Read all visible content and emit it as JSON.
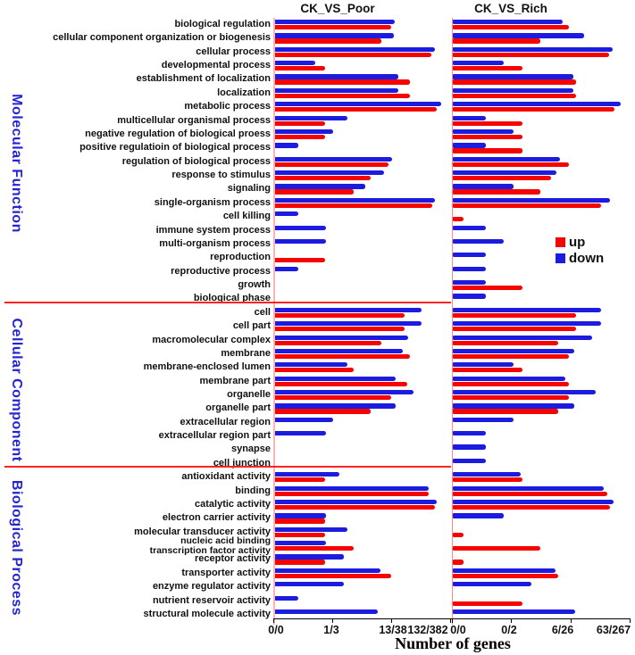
{
  "legend": {
    "up_label": "up",
    "down_label": "down"
  },
  "colors": {
    "up": "#f50400",
    "down": "#1c1ce0",
    "group_label": "#2424d2",
    "divider": "#ff2222",
    "zero_line_left": "#ffb3b3",
    "zero_line_right": "#ff8888"
  },
  "groups": [
    {
      "label": "Molecular Function",
      "start": 0,
      "end": 20
    },
    {
      "label": "Cellular Component",
      "start": 21,
      "end": 32
    },
    {
      "label": "Biological Process",
      "start": 33,
      "end": 43
    }
  ],
  "chart_data": {
    "type": "bar",
    "orientation": "horizontal",
    "x_scale": "log; ticks at 0.1%, 1%, 10%, 100% of total up/down genes, labelled as up/down gene counts",
    "xlabel": "Number of genes",
    "legend_position": "middle-right",
    "note": "values are gene counts estimated from bar lengths; 0.1 marks a barely-visible stub at the axis origin",
    "categories": [
      "biological regulation",
      "cellular component organization or biogenesis",
      "cellular process",
      "developmental process",
      "establishment of localization",
      "localization",
      "metabolic process",
      "multicellular organismal process",
      "negative regulation of biological proess",
      "positive regulatioin of biological process",
      "regulation of biological process",
      "response to stimulus",
      "signaling",
      "single-organism process",
      "cell killing",
      "immune system process",
      "multi-organism process",
      "reproduction",
      "reproductive process",
      "growth",
      "biological phase",
      "cell",
      "cell part",
      "macromolecular complex",
      "membrane",
      "membrane-enclosed lumen",
      "membrane part",
      "organelle",
      "organelle part",
      "extracellular region",
      "extracellular region part",
      "synapse",
      "cell junction",
      "antioxidant activity",
      "binding",
      "catalytic activity",
      "electron carrier activity",
      "molecular transducer activity",
      "nucleic acid binding\ntranscription factor activity",
      "receptor activity",
      "transporter activity",
      "enzyme regulator activity",
      "nutrient reservoir activity",
      "structural molecule activity"
    ],
    "panels": [
      {
        "title": "CK_VS_Poor",
        "totals": {
          "up": 132,
          "down": 382
        },
        "x_tick_labels": [
          "0/0",
          "1/3",
          "13/38",
          "132/382"
        ],
        "series": [
          {
            "name": "up",
            "values": [
              13,
              9,
              64,
              1,
              27,
              27,
              78,
              1,
              1,
              0,
              12,
              6,
              3,
              66,
              0,
              0,
              0,
              1,
              0,
              0.1,
              0,
              22,
              22,
              9,
              27,
              3,
              25,
              13,
              6,
              0,
              0,
              0.1,
              0.1,
              1,
              57,
              73,
              1,
              1,
              3,
              1,
              13,
              0,
              0,
              0
            ]
          },
          {
            "name": "down",
            "values": [
              44,
              42,
              211,
              2,
              50,
              50,
              270,
              7,
              4,
              1,
              40,
              29,
              14,
              211,
              1,
              3,
              3,
              0,
              1,
              0.1,
              0.1,
              125,
              123,
              74,
              60,
              7,
              45,
              91,
              46,
              4,
              3,
              0,
              0.1,
              5,
              165,
              226,
              3,
              7,
              3,
              6,
              25,
              6,
              1,
              23
            ]
          }
        ]
      },
      {
        "title": "CK_VS_Rich",
        "totals": {
          "up": 63,
          "down": 267
        },
        "x_tick_labels": [
          "0/0",
          "0/2",
          "6/26",
          "63/267"
        ],
        "series": [
          {
            "name": "up",
            "values": [
              6,
              2,
              29,
              1,
              8,
              8,
              36,
              1,
              1,
              1,
              6,
              3,
              2,
              21,
              0.1,
              0,
              0,
              0,
              0,
              1,
              0,
              8,
              8,
              4,
              6,
              1,
              6,
              6,
              4,
              0,
              0,
              0,
              0,
              1,
              27,
              30,
              0,
              0.1,
              2,
              0.1,
              4,
              0,
              1,
              0
            ]
          },
          {
            "name": "down",
            "values": [
              20,
              47,
              140,
              2,
              31,
              31,
              192,
              1,
              3,
              1,
              18,
              16,
              3,
              127,
              0,
              1,
              2,
              1,
              1,
              1,
              1,
              90,
              90,
              64,
              32,
              3,
              22,
              73,
              32,
              3,
              1,
              1,
              1,
              4,
              99,
              146,
              2,
              0,
              0,
              0,
              15,
              6,
              0,
              33
            ]
          }
        ]
      }
    ]
  }
}
